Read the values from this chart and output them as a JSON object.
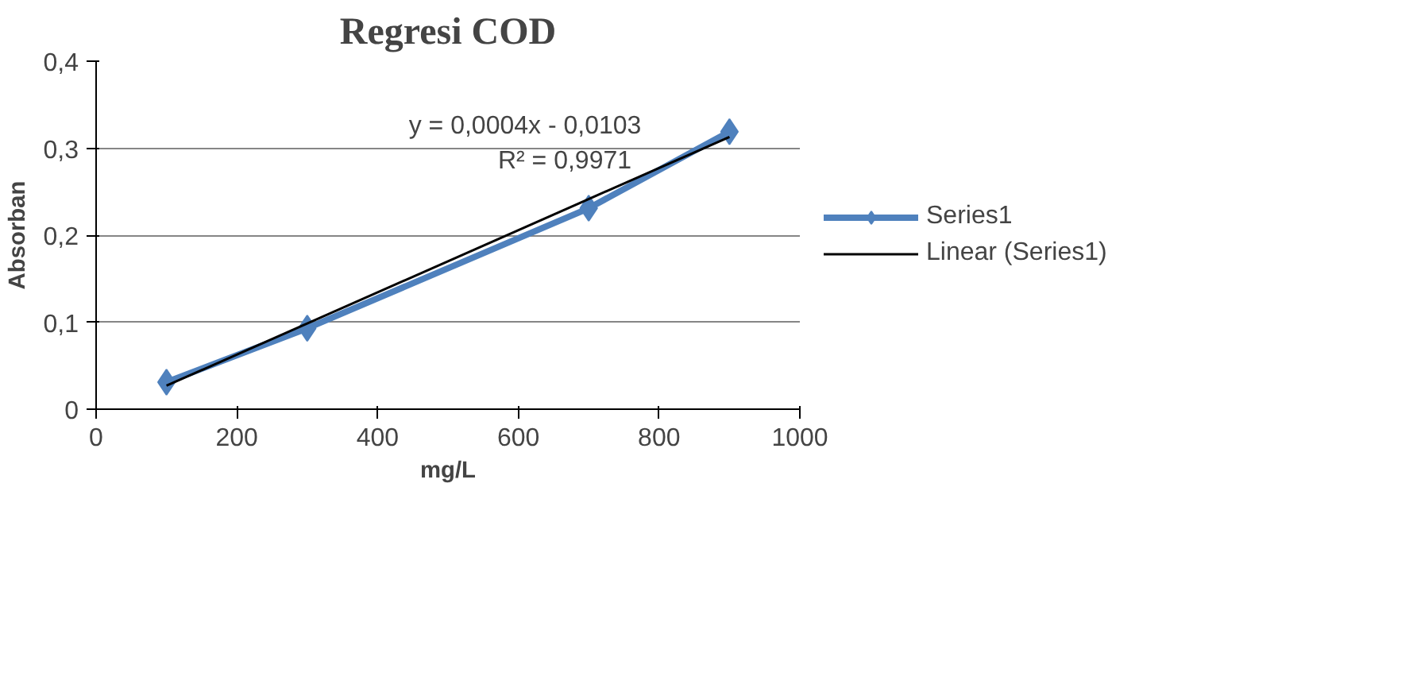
{
  "chart_data": {
    "type": "line",
    "title": "Regresi COD",
    "xlabel": "mg/L",
    "ylabel": "Absorban",
    "xlim": [
      0,
      1000
    ],
    "xticks": [
      0,
      200,
      400,
      600,
      800,
      1000
    ],
    "ylim": [
      0,
      0.4
    ],
    "yticks": [
      {
        "value": 0,
        "label": "0"
      },
      {
        "value": 0.1,
        "label": "0,1"
      },
      {
        "value": 0.2,
        "label": "0,2"
      },
      {
        "value": 0.3,
        "label": "0,3"
      },
      {
        "value": 0.4,
        "label": "0,4"
      }
    ],
    "grid": "y",
    "legend": "right",
    "marker": "diamond",
    "series": [
      {
        "name": "Series1",
        "color": "#4f81bd",
        "x": [
          100,
          300,
          700,
          900
        ],
        "values": [
          0.031,
          0.093,
          0.231,
          0.319
        ]
      },
      {
        "name": "Linear (Series1)",
        "color": "#000000",
        "type": "line",
        "marker": "none",
        "x": [
          100,
          900
        ],
        "values": [
          0.027,
          0.313
        ]
      }
    ],
    "annotations": [
      "y = 0,0004x - 0,0103",
      "R² = 0,9971"
    ]
  }
}
